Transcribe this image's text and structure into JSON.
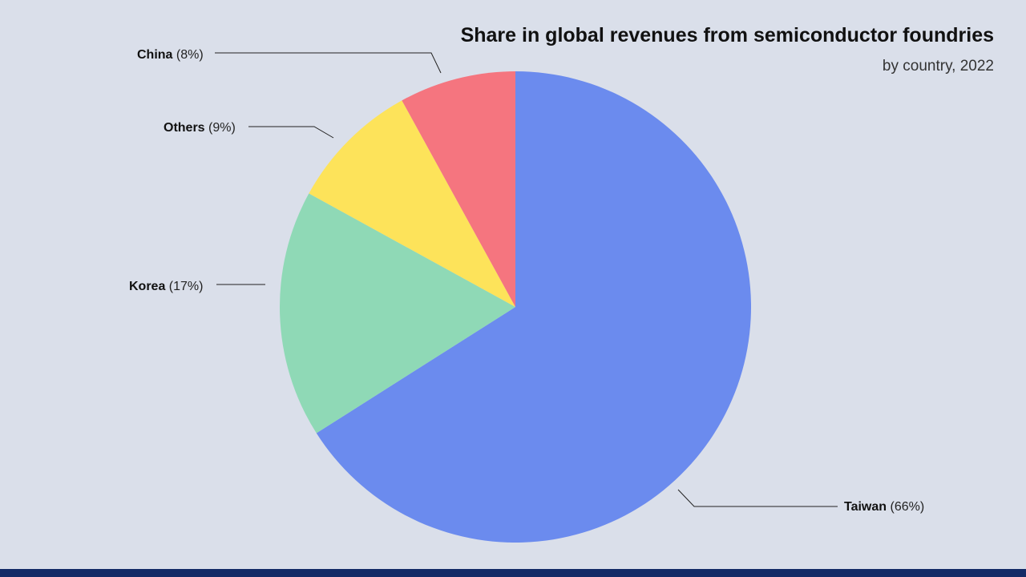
{
  "chart_data": {
    "type": "pie",
    "title": "Share in global revenues from semiconductor foundries",
    "subtitle": "by country, 2022",
    "slices": [
      {
        "label": "Taiwan",
        "value": 66,
        "pct_label": "(66%)",
        "color": "#6b8bee"
      },
      {
        "label": "Korea",
        "value": 17,
        "pct_label": "(17%)",
        "color": "#8fd9b6"
      },
      {
        "label": "Others",
        "value": 9,
        "pct_label": "(9%)",
        "color": "#fde35a"
      },
      {
        "label": "China",
        "value": 8,
        "pct_label": "(8%)",
        "color": "#f5757f"
      }
    ],
    "start": "12 o'clock",
    "direction": "clockwise"
  },
  "colors": {
    "background": "#dadfea",
    "footer_bar": "#132a66",
    "leader_line": "#222222"
  }
}
